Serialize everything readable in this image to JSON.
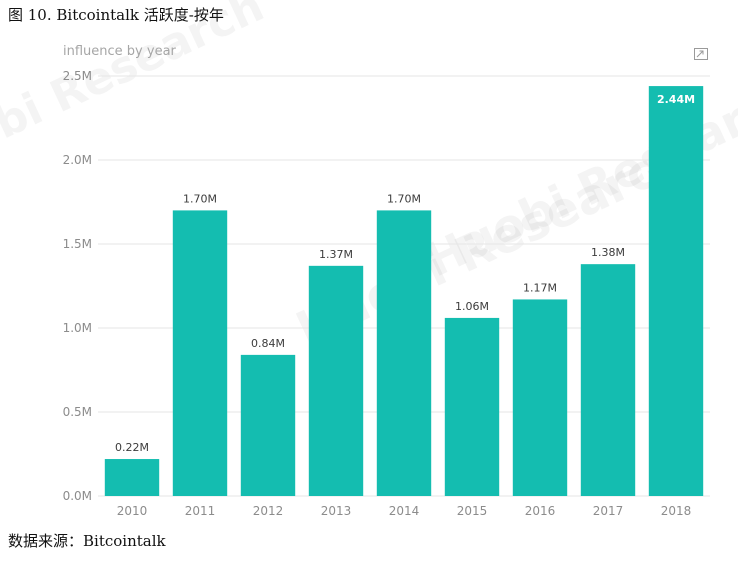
{
  "caption": "图 10. Bitcointalk 活跃度-按年",
  "source": "数据来源：Bitcointalk",
  "watermark": "Huobi Research",
  "icons": {
    "focus_mode": "focus-mode-icon"
  },
  "colors": {
    "bar": "#14bdb0",
    "label_on_bar": "#ffffff"
  },
  "chart_data": {
    "type": "bar",
    "title": "influence by year",
    "categories": [
      "2010",
      "2011",
      "2012",
      "2013",
      "2014",
      "2015",
      "2016",
      "2017",
      "2018"
    ],
    "values": [
      0.22,
      1.7,
      0.84,
      1.37,
      1.7,
      1.06,
      1.17,
      1.38,
      2.44
    ],
    "value_labels": [
      "0.22M",
      "1.70M",
      "0.84M",
      "1.37M",
      "1.70M",
      "1.06M",
      "1.17M",
      "1.38M",
      "2.44M"
    ],
    "unit": "M",
    "ylim": [
      0,
      2.5
    ],
    "yticks": [
      0,
      0.5,
      1.0,
      1.5,
      2.0,
      2.5
    ],
    "ytick_labels": [
      "0.0M",
      "0.5M",
      "1.0M",
      "1.5M",
      "2.0M",
      "2.5M"
    ],
    "grid": true,
    "legend": "none",
    "xlabel": "",
    "ylabel": ""
  }
}
